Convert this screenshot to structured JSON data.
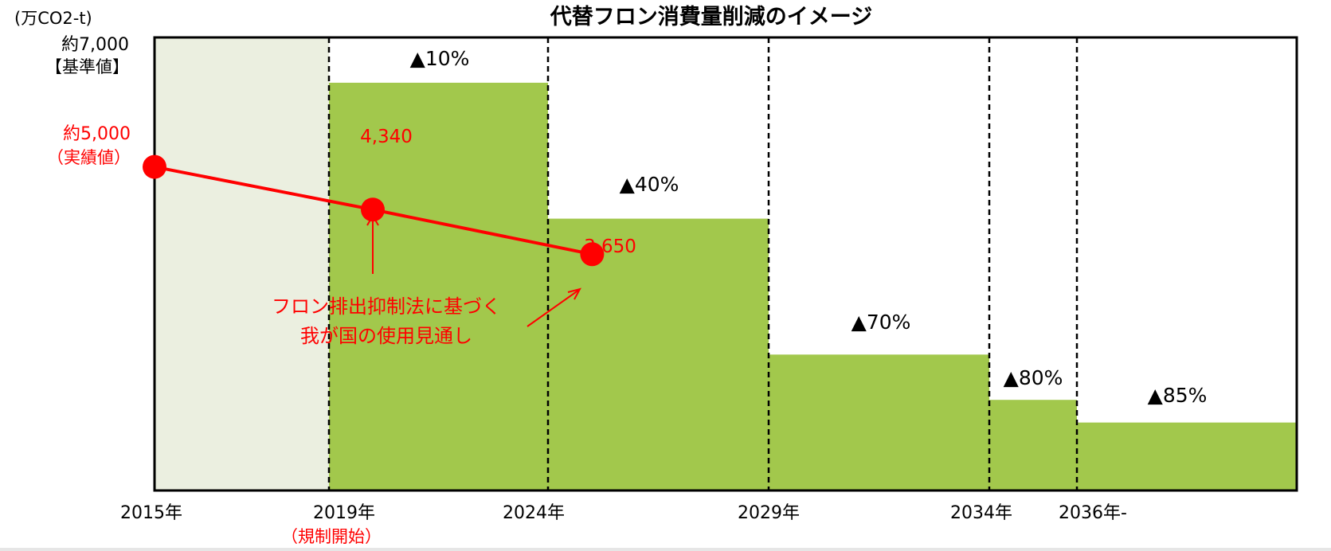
{
  "chart_data": {
    "type": "step-bar",
    "title": "代替フロン消費量削減のイメージ",
    "unit_label": "(万CO2-t)",
    "ylim": [
      0,
      7000
    ],
    "y_labels": [
      {
        "key": "baseline",
        "line1": "約7,000",
        "line2": "【基準値】",
        "value": 7000
      },
      {
        "key": "actual",
        "line1": "約5,000",
        "line2": "（実績値）",
        "value": 5000
      }
    ],
    "x_ticks": [
      "2015年",
      "2019年",
      "2024年",
      "2029年",
      "2034年",
      "2036年-"
    ],
    "x_tick_note": "（規制開始）",
    "periods": [
      {
        "start": 2015,
        "end": 2019,
        "value": 7000,
        "label": "",
        "fill": "#ebefe0"
      },
      {
        "start": 2019,
        "end": 2024,
        "value": 6300,
        "label": "▲10%",
        "fill": "#a2c84c"
      },
      {
        "start": 2024,
        "end": 2029,
        "value": 4200,
        "label": "▲40%",
        "fill": "#a2c84c"
      },
      {
        "start": 2029,
        "end": 2034,
        "value": 2100,
        "label": "▲70%",
        "fill": "#a2c84c"
      },
      {
        "start": 2034,
        "end": 2036,
        "value": 1400,
        "label": "▲80%",
        "fill": "#a2c84c"
      },
      {
        "start": 2036,
        "end": 2041,
        "value": 1050,
        "label": "▲85%",
        "fill": "#a2c84c"
      }
    ],
    "forecast_series": {
      "color": "#ff0000",
      "points": [
        {
          "year": 2015,
          "value": 5000,
          "label": ""
        },
        {
          "year": 2020,
          "value": 4340,
          "label": "4,340"
        },
        {
          "year": 2025,
          "value": 3650,
          "label": "3,650"
        }
      ]
    },
    "annotation": {
      "line1": "フロン排出抑制法に基づく",
      "line2": "我が国の使用見通し",
      "color": "#ff0000"
    },
    "colors": {
      "reduction": "#a2c84c",
      "pre_regulation": "#ebefe0",
      "forecast": "#ff0000",
      "axis": "#000000"
    }
  }
}
